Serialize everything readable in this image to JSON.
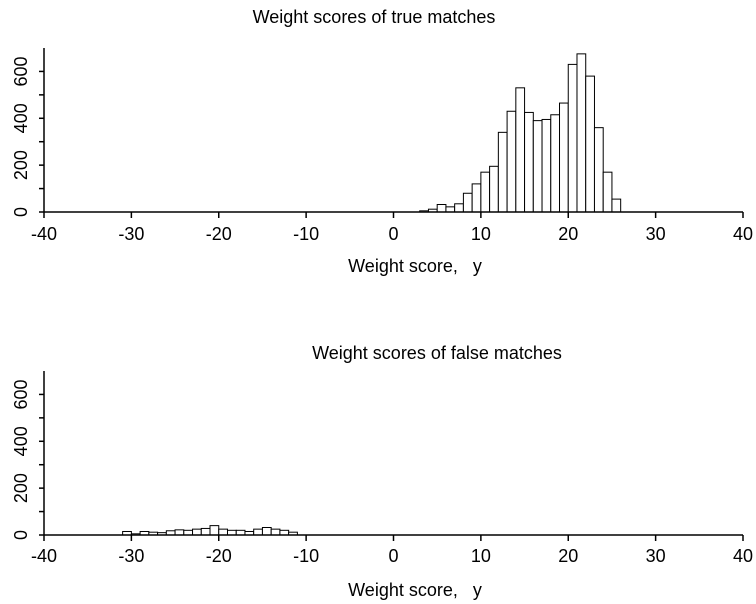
{
  "chart_data": [
    {
      "type": "bar",
      "title": "Weight scores of true matches",
      "xlabel": "Weight score,   y",
      "ylabel": "",
      "xlim": [
        -40,
        40
      ],
      "ylim": [
        0,
        700
      ],
      "xticks": [
        -40,
        -30,
        -20,
        -10,
        0,
        10,
        20,
        30,
        40
      ],
      "yticks": [
        0,
        200,
        400,
        600
      ],
      "yminor": [
        100,
        300,
        500
      ],
      "bin_width": 1,
      "bins": [
        {
          "x0": 3,
          "value": 5
        },
        {
          "x0": 4,
          "value": 12
        },
        {
          "x0": 5,
          "value": 32
        },
        {
          "x0": 6,
          "value": 22
        },
        {
          "x0": 7,
          "value": 35
        },
        {
          "x0": 8,
          "value": 80
        },
        {
          "x0": 9,
          "value": 120
        },
        {
          "x0": 10,
          "value": 170
        },
        {
          "x0": 11,
          "value": 195
        },
        {
          "x0": 12,
          "value": 340
        },
        {
          "x0": 13,
          "value": 430
        },
        {
          "x0": 14,
          "value": 530
        },
        {
          "x0": 15,
          "value": 425
        },
        {
          "x0": 16,
          "value": 390
        },
        {
          "x0": 17,
          "value": 395
        },
        {
          "x0": 18,
          "value": 415
        },
        {
          "x0": 19,
          "value": 465
        },
        {
          "x0": 20,
          "value": 630
        },
        {
          "x0": 21,
          "value": 675
        },
        {
          "x0": 22,
          "value": 580
        },
        {
          "x0": 23,
          "value": 360
        },
        {
          "x0": 24,
          "value": 170
        },
        {
          "x0": 25,
          "value": 55
        }
      ]
    },
    {
      "type": "bar",
      "title": "Weight scores of false matches",
      "xlabel": "Weight score,   y",
      "ylabel": "",
      "xlim": [
        -40,
        40
      ],
      "ylim": [
        0,
        700
      ],
      "xticks": [
        -40,
        -30,
        -20,
        -10,
        0,
        10,
        20,
        30,
        40
      ],
      "yticks": [
        0,
        200,
        400,
        600
      ],
      "yminor": [
        100,
        300,
        500
      ],
      "bin_width": 1,
      "bins": [
        {
          "x0": -31,
          "value": 15
        },
        {
          "x0": -30,
          "value": 5
        },
        {
          "x0": -29,
          "value": 15
        },
        {
          "x0": -28,
          "value": 12
        },
        {
          "x0": -27,
          "value": 10
        },
        {
          "x0": -26,
          "value": 18
        },
        {
          "x0": -25,
          "value": 22
        },
        {
          "x0": -24,
          "value": 20
        },
        {
          "x0": -23,
          "value": 25
        },
        {
          "x0": -22,
          "value": 28
        },
        {
          "x0": -21,
          "value": 40
        },
        {
          "x0": -20,
          "value": 25
        },
        {
          "x0": -19,
          "value": 20
        },
        {
          "x0": -18,
          "value": 20
        },
        {
          "x0": -17,
          "value": 15
        },
        {
          "x0": -16,
          "value": 25
        },
        {
          "x0": -15,
          "value": 32
        },
        {
          "x0": -14,
          "value": 25
        },
        {
          "x0": -13,
          "value": 20
        },
        {
          "x0": -12,
          "value": 12
        }
      ]
    }
  ]
}
